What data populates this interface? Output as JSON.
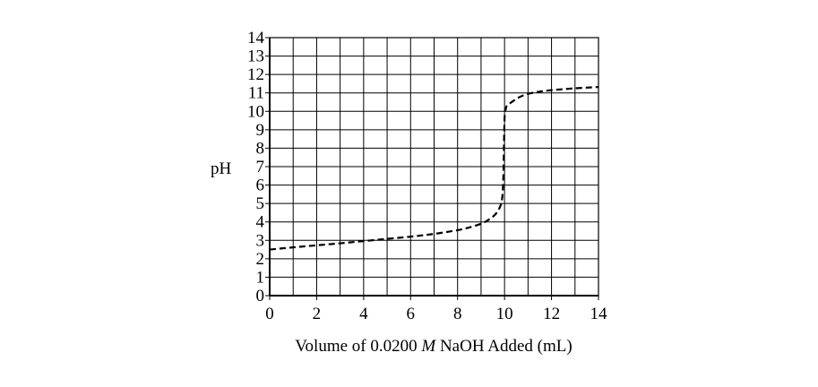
{
  "chart_data": {
    "type": "line",
    "title": "",
    "xlabel_parts": [
      "Volume of 0.0200 ",
      "M",
      " NaOH Added (mL)"
    ],
    "ylabel": "pH",
    "xlim": [
      0,
      14
    ],
    "ylim": [
      0,
      14
    ],
    "x_ticks": [
      "0",
      "2",
      "4",
      "6",
      "8",
      "10",
      "12",
      "14"
    ],
    "y_ticks": [
      "0",
      "1",
      "2",
      "3",
      "4",
      "5",
      "6",
      "7",
      "8",
      "9",
      "10",
      "11",
      "12",
      "13",
      "14"
    ],
    "grid": true,
    "line_style": "dashed",
    "series": [
      {
        "x": [
          0,
          1,
          2,
          3,
          4,
          5,
          6,
          7,
          8,
          8.5,
          9,
          9.3,
          9.6,
          9.8,
          9.9,
          9.95,
          10,
          10.05,
          10.1,
          10.3,
          10.6,
          11,
          11.5,
          12,
          13,
          14
        ],
        "y": [
          2.5,
          2.62,
          2.73,
          2.84,
          2.96,
          3.08,
          3.2,
          3.35,
          3.55,
          3.7,
          3.9,
          4.1,
          4.4,
          4.8,
          5.3,
          6.5,
          9.6,
          10.1,
          10.3,
          10.5,
          10.75,
          10.95,
          11.07,
          11.15,
          11.25,
          11.32
        ]
      }
    ]
  }
}
